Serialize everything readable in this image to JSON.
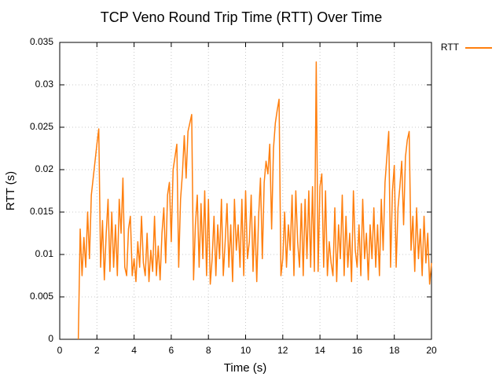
{
  "chart_data": {
    "type": "line",
    "title": "TCP Veno Round Trip Time (RTT) Over Time",
    "x_label": "Time (s)",
    "y_label": "RTT (s)",
    "xlim": [
      0,
      20
    ],
    "xticks": [
      0,
      2,
      4,
      6,
      8,
      10,
      12,
      14,
      16,
      18,
      20
    ],
    "ylim": [
      0,
      0.035
    ],
    "yticks": [
      0,
      0.005,
      0.01,
      0.015,
      0.02,
      0.025,
      0.03,
      0.035
    ],
    "grid": true,
    "legend": "top-right",
    "x": [
      1.0,
      1.1,
      1.2,
      1.3,
      1.4,
      1.5,
      1.6,
      1.7,
      1.8,
      1.9,
      2.0,
      2.1,
      2.2,
      2.3,
      2.4,
      2.5,
      2.6,
      2.7,
      2.8,
      2.9,
      3.0,
      3.1,
      3.2,
      3.3,
      3.4,
      3.5,
      3.6,
      3.7,
      3.8,
      3.9,
      4.0,
      4.1,
      4.2,
      4.3,
      4.4,
      4.5,
      4.6,
      4.7,
      4.8,
      4.9,
      5.0,
      5.1,
      5.2,
      5.3,
      5.4,
      5.5,
      5.6,
      5.7,
      5.8,
      5.9,
      6.0,
      6.1,
      6.2,
      6.3,
      6.4,
      6.5,
      6.6,
      6.7,
      6.8,
      6.9,
      7.0,
      7.1,
      7.2,
      7.3,
      7.4,
      7.5,
      7.6,
      7.7,
      7.8,
      7.9,
      8.0,
      8.1,
      8.2,
      8.3,
      8.4,
      8.5,
      8.6,
      8.7,
      8.8,
      8.9,
      9.0,
      9.1,
      9.2,
      9.3,
      9.4,
      9.5,
      9.6,
      9.7,
      9.8,
      9.9,
      10.0,
      10.1,
      10.2,
      10.3,
      10.4,
      10.5,
      10.6,
      10.7,
      10.8,
      10.9,
      11.0,
      11.1,
      11.2,
      11.3,
      11.4,
      11.5,
      11.6,
      11.7,
      11.8,
      11.9,
      12.0,
      12.1,
      12.2,
      12.3,
      12.4,
      12.5,
      12.6,
      12.7,
      12.8,
      12.9,
      13.0,
      13.1,
      13.2,
      13.3,
      13.4,
      13.5,
      13.6,
      13.7,
      13.8,
      13.9,
      14.0,
      14.1,
      14.2,
      14.3,
      14.4,
      14.5,
      14.6,
      14.7,
      14.8,
      14.9,
      15.0,
      15.1,
      15.2,
      15.3,
      15.4,
      15.5,
      15.6,
      15.7,
      15.8,
      15.9,
      16.0,
      16.1,
      16.2,
      16.3,
      16.4,
      16.5,
      16.6,
      16.7,
      16.8,
      16.9,
      17.0,
      17.1,
      17.2,
      17.3,
      17.4,
      17.5,
      17.6,
      17.7,
      17.8,
      17.9,
      18.0,
      18.1,
      18.2,
      18.3,
      18.4,
      18.5,
      18.6,
      18.7,
      18.8,
      18.9,
      19.0,
      19.1,
      19.2,
      19.3,
      19.4,
      19.5,
      19.6,
      19.7,
      19.8,
      19.9,
      20.0
    ],
    "series": [
      {
        "name": "RTT",
        "color": "#ff7f0e",
        "values": [
          0,
          0.013,
          0.0075,
          0.012,
          0.0085,
          0.015,
          0.0095,
          0.017,
          0.019,
          0.021,
          0.023,
          0.0248,
          0.0085,
          0.014,
          0.007,
          0.0125,
          0.0165,
          0.008,
          0.015,
          0.0085,
          0.0135,
          0.0075,
          0.0165,
          0.0125,
          0.019,
          0.0085,
          0.0075,
          0.013,
          0.0145,
          0.0075,
          0.0095,
          0.0068,
          0.0115,
          0.0085,
          0.0145,
          0.009,
          0.0075,
          0.0125,
          0.0068,
          0.0105,
          0.008,
          0.0145,
          0.0075,
          0.011,
          0.007,
          0.0125,
          0.0155,
          0.009,
          0.017,
          0.0185,
          0.0115,
          0.02,
          0.0215,
          0.023,
          0.0085,
          0.0165,
          0.0195,
          0.024,
          0.019,
          0.0245,
          0.0255,
          0.0265,
          0.007,
          0.0135,
          0.017,
          0.0085,
          0.016,
          0.0095,
          0.0175,
          0.0075,
          0.0165,
          0.0065,
          0.0095,
          0.0145,
          0.0075,
          0.0135,
          0.0095,
          0.0165,
          0.0075,
          0.0115,
          0.016,
          0.0085,
          0.0135,
          0.0068,
          0.0165,
          0.0105,
          0.0135,
          0.0085,
          0.0165,
          0.0075,
          0.0175,
          0.0095,
          0.0115,
          0.017,
          0.008,
          0.0145,
          0.0068,
          0.0145,
          0.019,
          0.0095,
          0.0185,
          0.021,
          0.0195,
          0.023,
          0.013,
          0.0225,
          0.0255,
          0.027,
          0.0283,
          0.0075,
          0.0095,
          0.015,
          0.0085,
          0.0135,
          0.0105,
          0.017,
          0.0075,
          0.0175,
          0.0115,
          0.0085,
          0.016,
          0.0075,
          0.0165,
          0.0095,
          0.0175,
          0.0085,
          0.018,
          0.008,
          0.0327,
          0.008,
          0.018,
          0.0195,
          0.0085,
          0.0175,
          0.0075,
          0.0115,
          0.009,
          0.0075,
          0.0155,
          0.0068,
          0.0135,
          0.0095,
          0.017,
          0.0075,
          0.0145,
          0.0085,
          0.0125,
          0.0068,
          0.0175,
          0.0105,
          0.0085,
          0.0135,
          0.0075,
          0.0165,
          0.0095,
          0.0125,
          0.007,
          0.0135,
          0.0095,
          0.0155,
          0.0085,
          0.0135,
          0.0075,
          0.0165,
          0.0105,
          0.0185,
          0.0215,
          0.0245,
          0.0085,
          0.0175,
          0.0205,
          0.0085,
          0.0155,
          0.018,
          0.021,
          0.0135,
          0.0215,
          0.0235,
          0.0245,
          0.0105,
          0.0145,
          0.008,
          0.0155,
          0.0095,
          0.013,
          0.0075,
          0.0145,
          0.009,
          0.0125,
          0.0065,
          0.009
        ]
      }
    ]
  }
}
